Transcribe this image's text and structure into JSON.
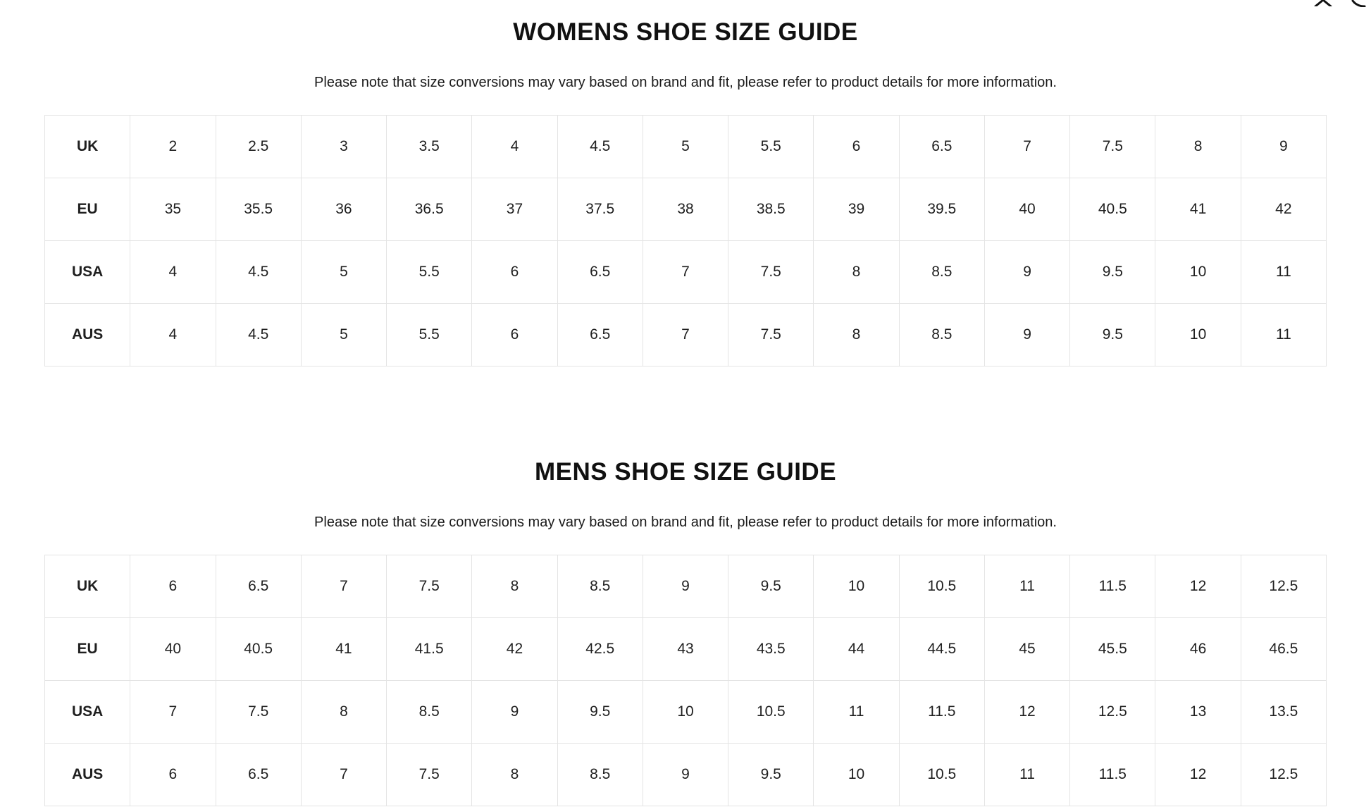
{
  "icons": {
    "top_right": [
      "close-icon-fragment",
      "curve-icon-fragment"
    ]
  },
  "colors": {
    "border": "#e4e4e4",
    "text": "#1a1a1a",
    "title": "#111111",
    "background": "#ffffff"
  },
  "womens": {
    "title": "WOMENS SHOE SIZE GUIDE",
    "note": "Please note that size conversions may vary based on brand and fit, please refer to product details for more information.",
    "rows": [
      {
        "label": "UK",
        "values": [
          "2",
          "2.5",
          "3",
          "3.5",
          "4",
          "4.5",
          "5",
          "5.5",
          "6",
          "6.5",
          "7",
          "7.5",
          "8",
          "9"
        ]
      },
      {
        "label": "EU",
        "values": [
          "35",
          "35.5",
          "36",
          "36.5",
          "37",
          "37.5",
          "38",
          "38.5",
          "39",
          "39.5",
          "40",
          "40.5",
          "41",
          "42"
        ]
      },
      {
        "label": "USA",
        "values": [
          "4",
          "4.5",
          "5",
          "5.5",
          "6",
          "6.5",
          "7",
          "7.5",
          "8",
          "8.5",
          "9",
          "9.5",
          "10",
          "11"
        ]
      },
      {
        "label": "AUS",
        "values": [
          "4",
          "4.5",
          "5",
          "5.5",
          "6",
          "6.5",
          "7",
          "7.5",
          "8",
          "8.5",
          "9",
          "9.5",
          "10",
          "11"
        ]
      }
    ]
  },
  "mens": {
    "title": "MENS SHOE SIZE GUIDE",
    "note": "Please note that size conversions may vary based on brand and fit, please refer to product details for more information.",
    "rows": [
      {
        "label": "UK",
        "values": [
          "6",
          "6.5",
          "7",
          "7.5",
          "8",
          "8.5",
          "9",
          "9.5",
          "10",
          "10.5",
          "11",
          "11.5",
          "12",
          "12.5"
        ]
      },
      {
        "label": "EU",
        "values": [
          "40",
          "40.5",
          "41",
          "41.5",
          "42",
          "42.5",
          "43",
          "43.5",
          "44",
          "44.5",
          "45",
          "45.5",
          "46",
          "46.5"
        ]
      },
      {
        "label": "USA",
        "values": [
          "7",
          "7.5",
          "8",
          "8.5",
          "9",
          "9.5",
          "10",
          "10.5",
          "11",
          "11.5",
          "12",
          "12.5",
          "13",
          "13.5"
        ]
      },
      {
        "label": "AUS",
        "values": [
          "6",
          "6.5",
          "7",
          "7.5",
          "8",
          "8.5",
          "9",
          "9.5",
          "10",
          "10.5",
          "11",
          "11.5",
          "12",
          "12.5"
        ]
      }
    ]
  }
}
